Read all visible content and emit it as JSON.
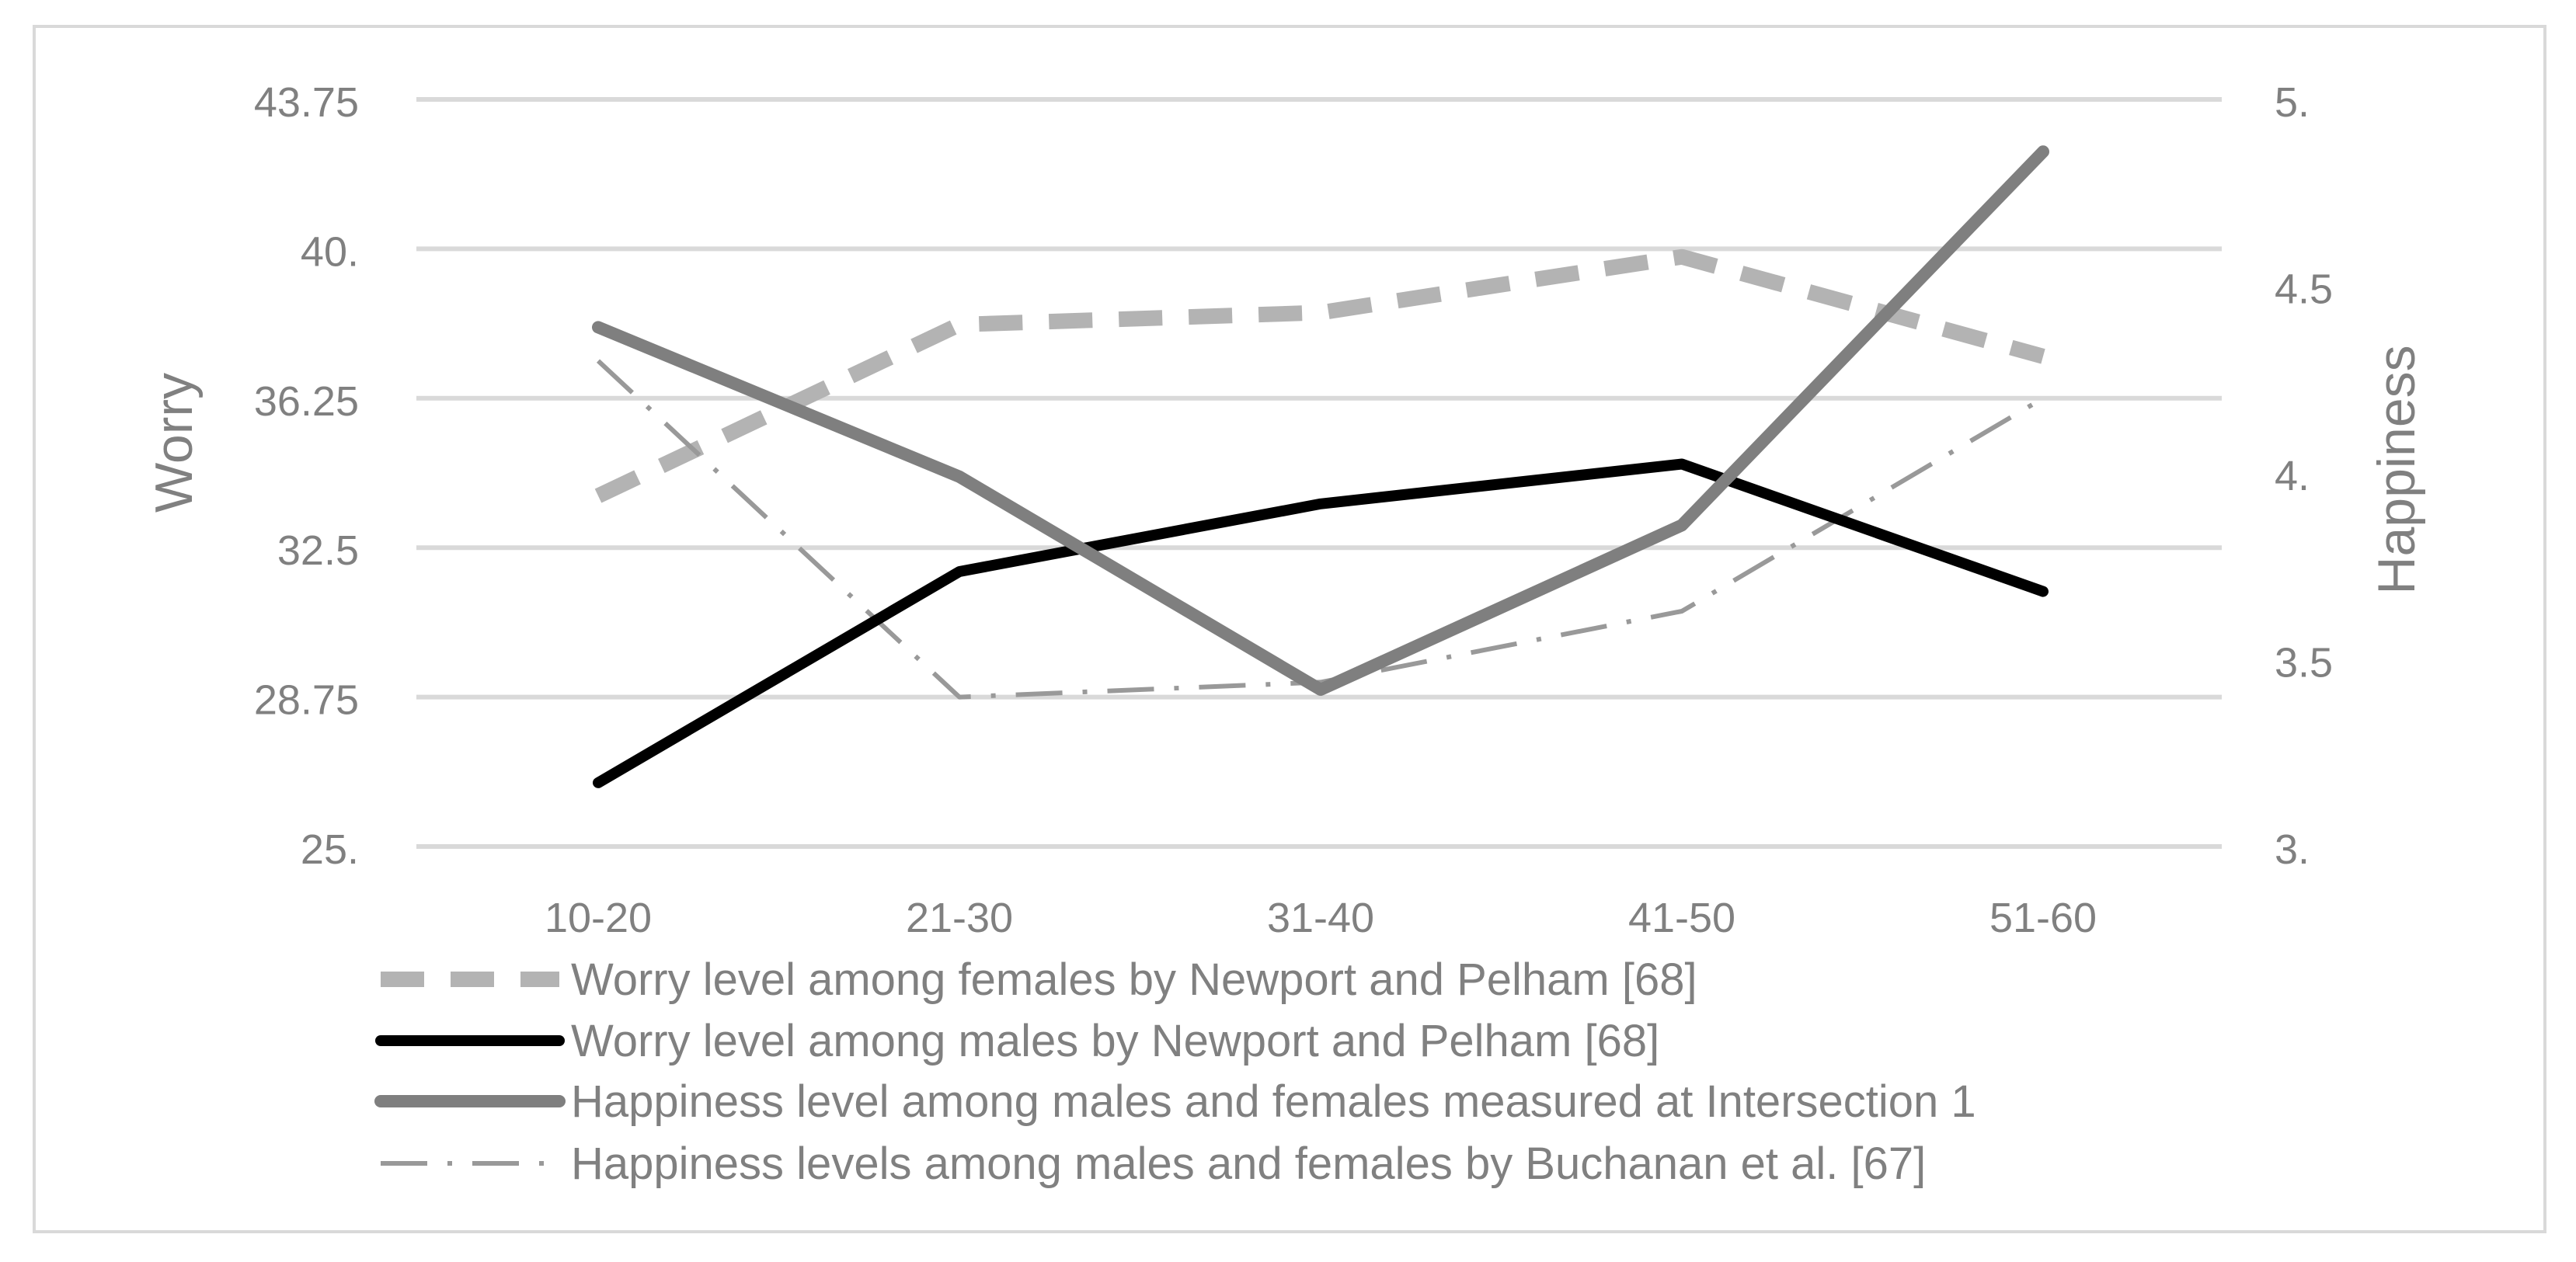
{
  "chart_data": {
    "type": "line",
    "categories": [
      "10-20",
      "21-30",
      "31-40",
      "41-50",
      "51-60"
    ],
    "axes": {
      "left": {
        "label": "Worry",
        "ylim": [
          25,
          43.75
        ],
        "ticks": [
          25,
          28.75,
          32.5,
          36.25,
          40,
          43.75
        ],
        "tick_labels": [
          "25.",
          "28.75",
          "32.5",
          "36.25",
          "40.",
          "43.75"
        ]
      },
      "right": {
        "label": "Happiness",
        "ylim": [
          3,
          5
        ],
        "ticks": [
          3,
          3.5,
          4,
          4.5,
          5
        ],
        "tick_labels": [
          "3.",
          "3.5",
          "4.",
          "4.5",
          "5."
        ]
      }
    },
    "grid": true,
    "legend_position": "bottom",
    "series": [
      {
        "name": "Worry level among females by Newport and Pelham [68]",
        "axis": "left",
        "values": [
          33.8,
          38.1,
          38.4,
          39.8,
          37.3
        ],
        "color": "#b3b3b3",
        "style": "dashed"
      },
      {
        "name": "Worry level among males by Newport and Pelham [68]",
        "axis": "left",
        "values": [
          26.6,
          31.9,
          33.6,
          34.6,
          31.4
        ],
        "color": "#000000",
        "style": "solid"
      },
      {
        "name": "Happiness level among males and females measured at Intersection 1",
        "axis": "right",
        "values": [
          4.39,
          3.99,
          3.42,
          3.86,
          4.86
        ],
        "color": "#7f7f7f",
        "style": "solid"
      },
      {
        "name": "Happiness levels among males and females by Buchanan et al. [67]",
        "axis": "right",
        "values": [
          4.3,
          3.4,
          3.44,
          3.63,
          4.2
        ],
        "color": "#999999",
        "style": "dashdot"
      }
    ]
  }
}
